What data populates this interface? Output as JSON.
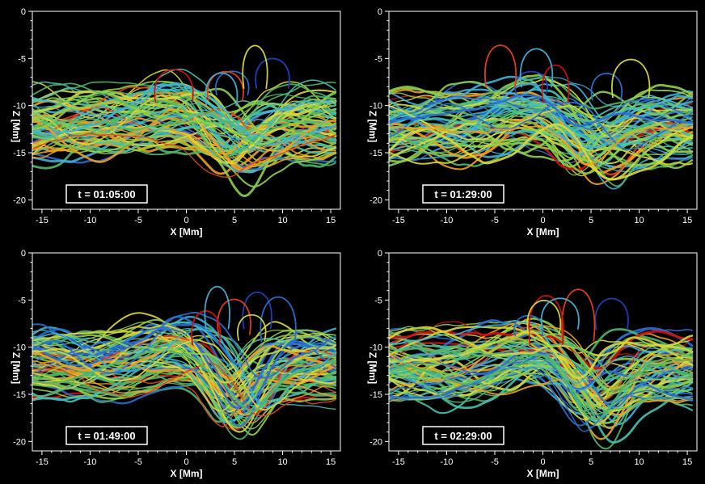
{
  "panels": [
    {
      "time_label": "t = 01:05:00",
      "seed": 11
    },
    {
      "time_label": "t = 01:29:00",
      "seed": 23
    },
    {
      "time_label": "t = 01:49:00",
      "seed": 37
    },
    {
      "time_label": "t = 02:29:00",
      "seed": 53
    }
  ],
  "axes": {
    "xlabel": "X [Mm]",
    "ylabel": "Z [Mm]",
    "xticks": [
      -15,
      -10,
      -5,
      0,
      5,
      10,
      15
    ],
    "zticks": [
      0,
      -5,
      -10,
      -15,
      -20
    ],
    "xlim": [
      -16,
      16
    ],
    "zlim": [
      0,
      -21
    ]
  },
  "colors": {
    "background": "#000000",
    "palette": [
      "#1f3fbf",
      "#2a6fd0",
      "#3fb0d8",
      "#46c2b0",
      "#4fb86a",
      "#8fcf4a",
      "#d8d83a",
      "#f0a020",
      "#e8401a",
      "#d01010"
    ]
  }
}
